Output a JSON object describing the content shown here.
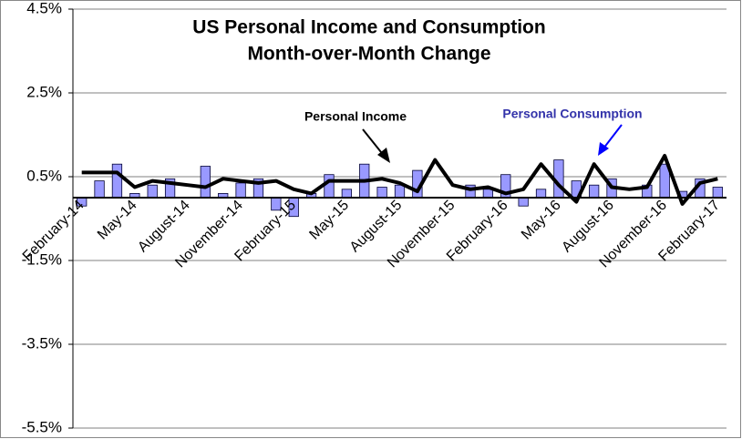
{
  "chart_data": {
    "type": "bar_line",
    "title": "US Personal Income and Consumption",
    "subtitle": "Month-over-Month Change",
    "categories": [
      "February-14",
      null,
      null,
      "May-14",
      null,
      null,
      "August-14",
      null,
      null,
      "November-14",
      null,
      null,
      "February-15",
      null,
      null,
      "May-15",
      null,
      null,
      "August-15",
      null,
      null,
      "November-15",
      null,
      null,
      "February-16",
      null,
      null,
      "May-16",
      null,
      null,
      "August-16",
      null,
      null,
      "November-16",
      null,
      null,
      "February-17"
    ],
    "series": [
      {
        "name": "Personal Consumption",
        "type": "bar",
        "color": "#9999ff",
        "values": [
          -0.2,
          0.4,
          0.8,
          0.1,
          0.3,
          0.45,
          0.0,
          0.75,
          0.1,
          0.35,
          0.45,
          -0.3,
          -0.45,
          0.1,
          0.55,
          0.2,
          0.8,
          0.25,
          0.3,
          0.65,
          0.0,
          0.0,
          0.3,
          0.2,
          0.55,
          -0.2,
          0.2,
          0.9,
          0.4,
          0.3,
          0.45,
          0.0,
          0.3,
          0.8,
          0.15,
          0.45,
          0.25
        ]
      },
      {
        "name": "Personal Income",
        "type": "line",
        "color": "#000000",
        "values": [
          0.6,
          0.6,
          0.6,
          0.25,
          0.4,
          0.35,
          0.3,
          0.25,
          0.45,
          0.4,
          0.35,
          0.4,
          0.2,
          0.1,
          0.4,
          0.4,
          0.4,
          0.45,
          0.35,
          0.15,
          0.9,
          0.3,
          0.2,
          0.25,
          0.1,
          0.2,
          0.8,
          0.3,
          -0.1,
          0.8,
          0.25,
          0.2,
          0.25,
          1.0,
          -0.15,
          0.35,
          0.45
        ]
      }
    ],
    "ylim": [
      -5.5,
      4.5
    ],
    "yticks": [
      {
        "value": -5.5,
        "label": "-5.5%"
      },
      {
        "value": -3.5,
        "label": "-3.5%"
      },
      {
        "value": -1.5,
        "label": "-1.5%"
      },
      {
        "value": 0.5,
        "label": "0.5%"
      },
      {
        "value": 2.5,
        "label": "2.5%"
      },
      {
        "value": 4.5,
        "label": "4.5%"
      }
    ],
    "grid": true
  }
}
